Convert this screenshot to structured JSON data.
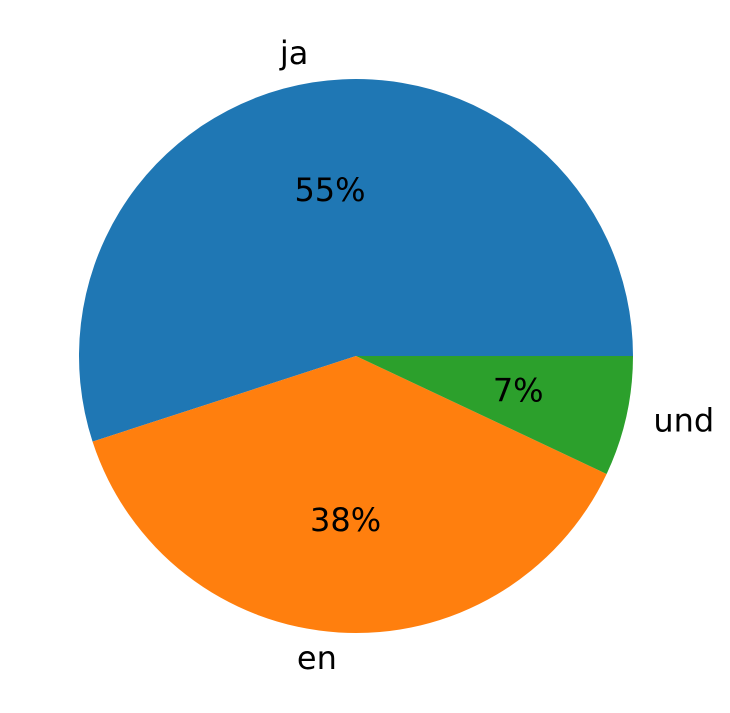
{
  "chart_data": {
    "type": "pie",
    "categories": [
      "ja",
      "en",
      "und"
    ],
    "values": [
      55,
      38,
      7
    ],
    "value_labels": [
      "55%",
      "38%",
      "7%"
    ],
    "colors": [
      "#1f77b4",
      "#ff7f0e",
      "#2ca02c"
    ]
  }
}
